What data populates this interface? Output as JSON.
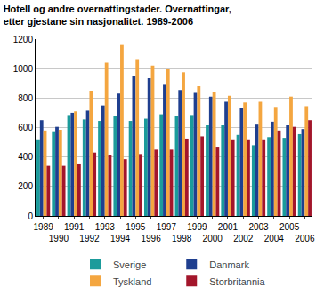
{
  "chart_data": {
    "type": "bar",
    "title": "Hotell og andre overnattingstader. Overnattingar, etter gjestane sin nasjonalitet. 1989-2006",
    "categories": [
      "1989",
      "1990",
      "1991",
      "1992",
      "1993",
      "1994",
      "1995",
      "1996",
      "1997",
      "1998",
      "1999",
      "2000",
      "2001",
      "2002",
      "2003",
      "2004",
      "2005",
      "2006"
    ],
    "series": [
      {
        "name": "Sverige",
        "color": "#1b9b9b",
        "values": [
          520,
          575,
          685,
          655,
          645,
          680,
          645,
          660,
          690,
          680,
          685,
          615,
          615,
          550,
          480,
          535,
          530,
          555
        ]
      },
      {
        "name": "Danmark",
        "color": "#1f3f8f",
        "values": [
          650,
          605,
          700,
          715,
          750,
          830,
          950,
          935,
          890,
          855,
          835,
          810,
          775,
          735,
          620,
          640,
          615,
          590
        ]
      },
      {
        "name": "Tyskland",
        "color": "#f4a640",
        "values": [
          580,
          585,
          710,
          850,
          1040,
          1160,
          1065,
          1020,
          995,
          975,
          880,
          840,
          815,
          770,
          775,
          740,
          810,
          745
        ]
      },
      {
        "name": "Storbritannia",
        "color": "#a3162b",
        "values": [
          340,
          340,
          350,
          430,
          410,
          385,
          420,
          450,
          450,
          525,
          540,
          470,
          520,
          520,
          520,
          580,
          605,
          650
        ]
      }
    ],
    "ylim": [
      0,
      1200
    ],
    "yticks": [
      0,
      200,
      400,
      600,
      800,
      1000,
      1200
    ],
    "grid": true,
    "legend": "bottom"
  }
}
